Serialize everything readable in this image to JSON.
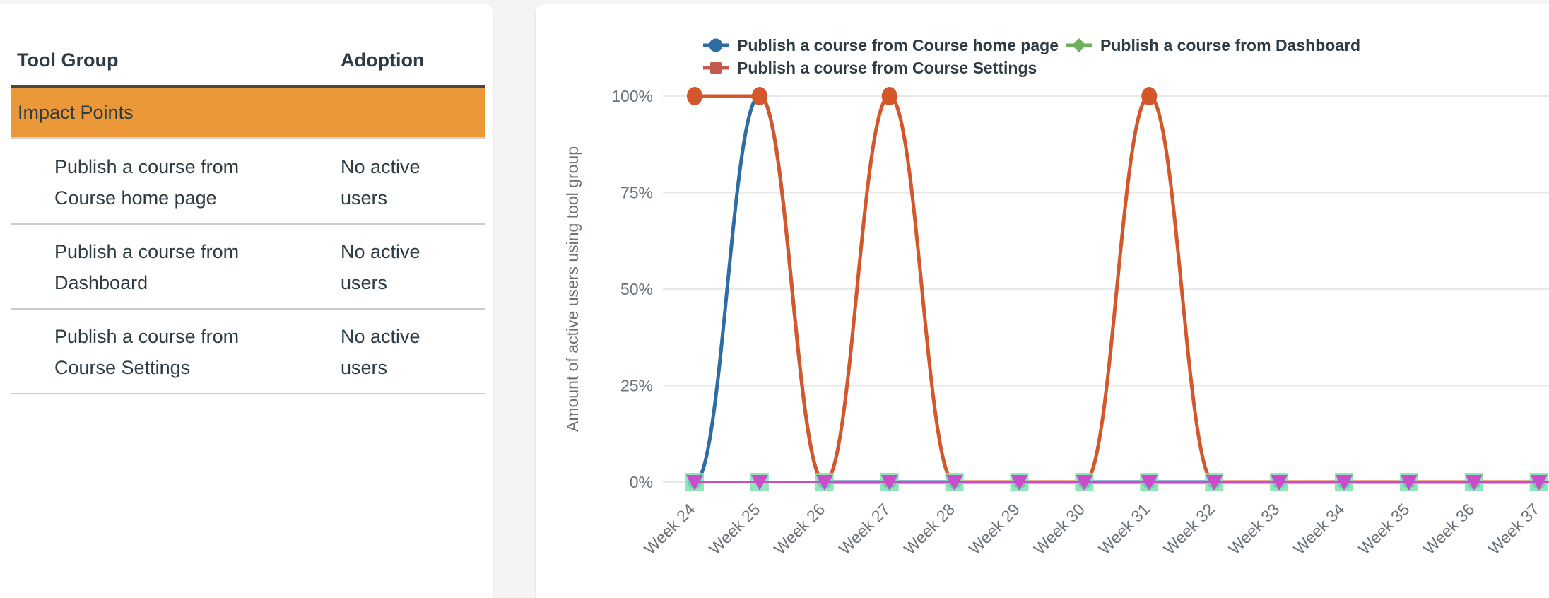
{
  "table": {
    "headers": {
      "tool_group": "Tool Group",
      "adoption": "Adoption"
    },
    "group_row": {
      "label": "Impact Points",
      "color": "#eb9839"
    },
    "rows": [
      {
        "tool": "Publish a course from Course home page",
        "adoption": "No active users"
      },
      {
        "tool": "Publish a course from Dashboard",
        "adoption": "No active users"
      },
      {
        "tool": "Publish a course from Course Settings",
        "adoption": "No active users"
      }
    ]
  },
  "chart_data": {
    "type": "line",
    "title": "",
    "ylabel": "Amount of active users using tool group",
    "xlabel": "",
    "ylim": [
      0,
      100
    ],
    "grid": true,
    "legend_position": "top",
    "x": [
      "Week 24",
      "Week 25",
      "Week 26",
      "Week 27",
      "Week 28",
      "Week 29",
      "Week 30",
      "Week 31",
      "Week 32",
      "Week 33",
      "Week 34",
      "Week 35",
      "Week 36",
      "Week 37"
    ],
    "yticks": [
      {
        "value": 0,
        "label": "0%"
      },
      {
        "value": 25,
        "label": "25%"
      },
      {
        "value": 50,
        "label": "50%"
      },
      {
        "value": 75,
        "label": "75%"
      },
      {
        "value": 100,
        "label": "100%"
      }
    ],
    "series": [
      {
        "name": "Publish a course from Course home page",
        "legend_marker": "circle",
        "chart_marker": "circle",
        "legend_color": "#2e6da3",
        "color": "#2e6da3",
        "values": [
          0,
          100,
          0,
          0,
          0,
          0,
          0,
          0,
          0,
          0,
          0,
          0,
          0,
          0
        ]
      },
      {
        "name": "Publish a course from Course Settings",
        "legend_marker": "square",
        "chart_marker": "circle",
        "legend_color": "#c35a4f",
        "color": "#d4572b",
        "values": [
          100,
          100,
          0,
          100,
          0,
          0,
          0,
          100,
          0,
          0,
          0,
          0,
          0,
          0
        ]
      },
      {
        "name": "Publish a course from Dashboard",
        "legend_marker": "diamond",
        "chart_marker": "square",
        "legend_color": "#6fae5c",
        "color": "#7de2af",
        "values": [
          0,
          0,
          0,
          0,
          0,
          0,
          0,
          0,
          0,
          0,
          0,
          0,
          0,
          0
        ]
      }
    ],
    "unlabeled_zero_series": {
      "legend_marker": "none",
      "chart_marker": "triangle-down",
      "color": "#c94ccb",
      "values": [
        0,
        0,
        0,
        0,
        0,
        0,
        0,
        0,
        0,
        0,
        0,
        0,
        0,
        0
      ]
    }
  }
}
